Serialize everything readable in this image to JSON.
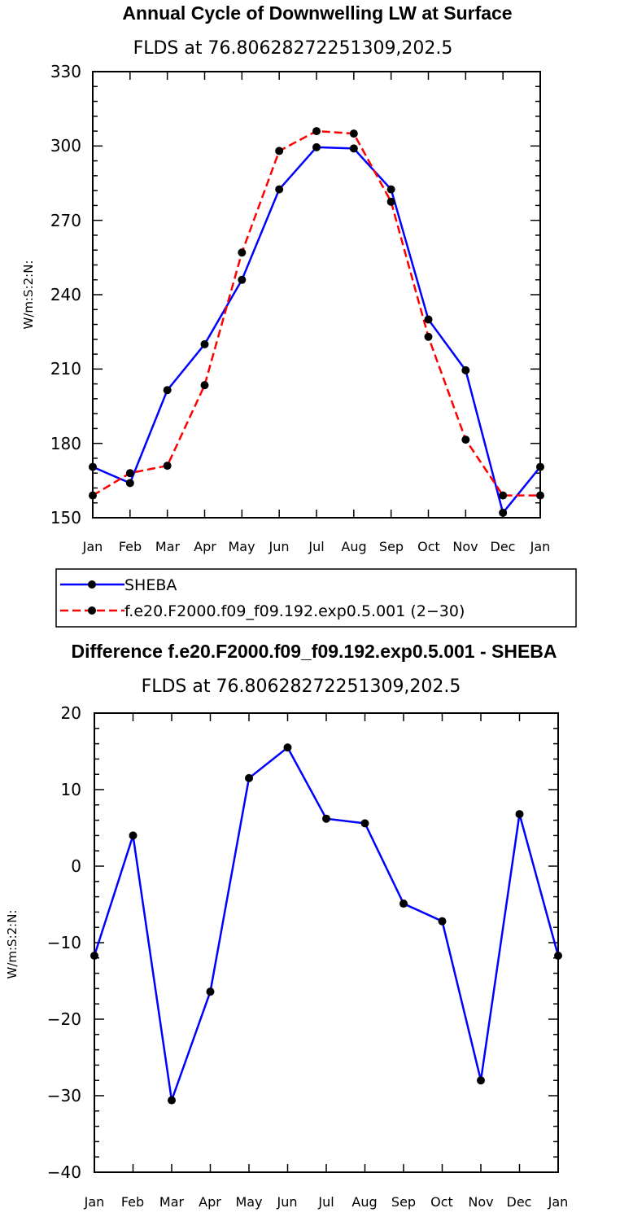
{
  "chart_data": [
    {
      "type": "line",
      "title": "Annual Cycle of Downwelling LW at Surface",
      "subtitle": "FLDS at 76.80628272251309,202.5",
      "xlabel": "",
      "ylabel": "W/m:S:2:N:",
      "categories": [
        "Jan",
        "Feb",
        "Mar",
        "Apr",
        "May",
        "Jun",
        "Jul",
        "Aug",
        "Sep",
        "Oct",
        "Nov",
        "Dec",
        "Jan"
      ],
      "ylim": [
        150,
        330
      ],
      "yticks": [
        "150",
        "180",
        "210",
        "240",
        "270",
        "300",
        "330"
      ],
      "series": [
        {
          "name": "SHEBA",
          "color": "#0000ff",
          "dash": "solid",
          "values": [
            170.5,
            164,
            201.5,
            220,
            246,
            282.5,
            299.5,
            299,
            282.5,
            230,
            209.5,
            152,
            170.5
          ]
        },
        {
          "name": "f.e20.F2000.f09_f09.192.exp0.5.001 (2−30)",
          "color": "#ff0000",
          "dash": "dashed",
          "values": [
            159,
            168,
            171,
            203.5,
            257,
            298,
            306,
            305,
            277.5,
            223,
            181.5,
            159,
            159
          ]
        }
      ],
      "legend": {
        "entries": [
          "SHEBA",
          "f.e20.F2000.f09_f09.192.exp0.5.001 (2−30)"
        ],
        "position": "bottom"
      }
    },
    {
      "type": "line",
      "title": "Difference f.e20.F2000.f09_f09.192.exp0.5.001 - SHEBA",
      "subtitle": "FLDS at 76.80628272251309,202.5",
      "xlabel": "",
      "ylabel": "W/m:S:2:N:",
      "categories": [
        "Jan",
        "Feb",
        "Mar",
        "Apr",
        "May",
        "Jun",
        "Jul",
        "Aug",
        "Sep",
        "Oct",
        "Nov",
        "Dec",
        "Jan"
      ],
      "ylim": [
        -40,
        20
      ],
      "yticks": [
        "−40",
        "−30",
        "−20",
        "−10",
        "0",
        "10",
        "20"
      ],
      "series": [
        {
          "name": "Difference",
          "color": "#0000ff",
          "dash": "solid",
          "values": [
            -11.7,
            4,
            -30.6,
            -16.4,
            11.5,
            15.5,
            6.2,
            5.6,
            -4.9,
            -7.2,
            -28,
            6.8,
            -11.7
          ]
        }
      ]
    }
  ]
}
